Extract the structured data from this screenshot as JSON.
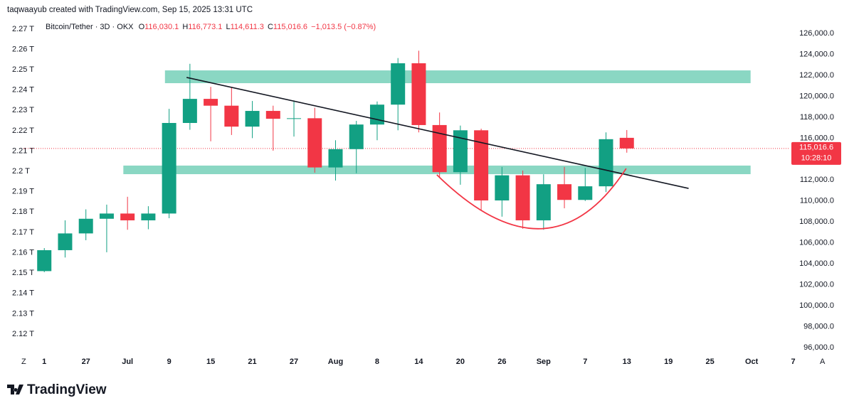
{
  "header": "taqwaayub created with TradingView.com, Sep 15, 2025 13:31 UTC",
  "logo": "TradingView",
  "chart_data": {
    "type": "candlestick",
    "symbol": "Bitcoin/Tether · 3D · OKX",
    "ohlc": [
      {
        "key": "O",
        "value": 116030.1,
        "label": "116,030.1"
      },
      {
        "key": "H",
        "value": 116773.1,
        "label": "116,773.1"
      },
      {
        "key": "L",
        "value": 114611.3,
        "label": "114,611.3"
      },
      {
        "key": "C",
        "value": 115016.6,
        "label": "115,016.6"
      }
    ],
    "change": {
      "value": -1013.5,
      "label": "−1,013.5"
    },
    "change_pct": {
      "value": -0.87,
      "label": "(−0.87%)"
    },
    "up_color": "#12a083",
    "down_color": "#f23645",
    "open": [
      103300,
      105300,
      106900,
      108300,
      108800,
      108150,
      108800,
      117450,
      119750,
      119100,
      117100,
      118600,
      117850,
      117900,
      113200,
      114950,
      117300,
      119200,
      123150,
      117250,
      112750,
      116750,
      110050,
      112450,
      108150,
      111600,
      110100,
      111400,
      116030.1
    ],
    "high": [
      105500,
      108150,
      109200,
      109650,
      110400,
      109500,
      118800,
      123100,
      120900,
      120850,
      119550,
      119100,
      119600,
      118900,
      115800,
      117650,
      119500,
      123650,
      124350,
      118450,
      117200,
      116900,
      113250,
      112900,
      112550,
      113250,
      113150,
      116550,
      116773.1
    ],
    "low": [
      103200,
      104600,
      106250,
      105100,
      107250,
      107300,
      108350,
      116800,
      115700,
      116300,
      116000,
      114800,
      116150,
      112700,
      111950,
      112650,
      115800,
      116750,
      116550,
      112200,
      111550,
      109100,
      108500,
      107350,
      107250,
      109300,
      110000,
      110850,
      114611.3
    ],
    "close": [
      105300,
      106900,
      108300,
      108800,
      108150,
      108800,
      117450,
      119750,
      119100,
      117100,
      118600,
      117850,
      117900,
      113200,
      114950,
      117300,
      119200,
      123150,
      117250,
      112750,
      116750,
      110050,
      112450,
      108150,
      111600,
      110100,
      111400,
      115900,
      115016.6
    ],
    "xlim": [
      -1,
      35.5
    ],
    "xticks": [
      {
        "value": 0,
        "label": "1"
      },
      {
        "value": 2,
        "label": "27"
      },
      {
        "value": 4,
        "label": "Jul"
      },
      {
        "value": 6,
        "label": "9"
      },
      {
        "value": 8,
        "label": "15"
      },
      {
        "value": 10,
        "label": "21"
      },
      {
        "value": 12,
        "label": "27"
      },
      {
        "value": 14,
        "label": "Aug"
      },
      {
        "value": 16,
        "label": "8"
      },
      {
        "value": 18,
        "label": "14"
      },
      {
        "value": 20,
        "label": "20"
      },
      {
        "value": 22,
        "label": "26"
      },
      {
        "value": 24,
        "label": "Sep"
      },
      {
        "value": 26,
        "label": "7"
      },
      {
        "value": 28,
        "label": "13"
      },
      {
        "value": 30,
        "label": "19"
      },
      {
        "value": 32,
        "label": "25"
      },
      {
        "value": 34,
        "label": "Oct"
      },
      {
        "value": 36,
        "label": "7"
      }
    ],
    "axis_buttons": [
      "Z",
      "A"
    ],
    "ylim": [
      95250,
      127700
    ],
    "yticks": [
      {
        "value": 126000,
        "label": "126,000.0"
      },
      {
        "value": 124000,
        "label": "124,000.0"
      },
      {
        "value": 122000,
        "label": "122,000.0"
      },
      {
        "value": 120000,
        "label": "120,000.0"
      },
      {
        "value": 118000,
        "label": "118,000.0"
      },
      {
        "value": 116000,
        "label": "116,000.0"
      },
      {
        "value": 112000,
        "label": "112,000.0"
      },
      {
        "value": 110000,
        "label": "110,000.0"
      },
      {
        "value": 108000,
        "label": "108,000.0"
      },
      {
        "value": 106000,
        "label": "106,000.0"
      },
      {
        "value": 104000,
        "label": "104,000.0"
      },
      {
        "value": 102000,
        "label": "102,000.0"
      },
      {
        "value": 100000,
        "label": "100,000.0"
      },
      {
        "value": 98000,
        "label": "98,000.0"
      },
      {
        "value": 96000,
        "label": "96,000.0"
      }
    ],
    "y2lim": [
      2.1095,
      2.2766
    ],
    "y2ticks": [
      {
        "value": 2.27,
        "label": "2.27 T"
      },
      {
        "value": 2.26,
        "label": "2.26 T"
      },
      {
        "value": 2.25,
        "label": "2.25 T"
      },
      {
        "value": 2.24,
        "label": "2.24 T"
      },
      {
        "value": 2.23,
        "label": "2.23 T"
      },
      {
        "value": 2.22,
        "label": "2.22 T"
      },
      {
        "value": 2.21,
        "label": "2.21 T"
      },
      {
        "value": 2.2,
        "label": "2.2 T"
      },
      {
        "value": 2.19,
        "label": "2.19 T"
      },
      {
        "value": 2.18,
        "label": "2.18 T"
      },
      {
        "value": 2.17,
        "label": "2.17 T"
      },
      {
        "value": 2.16,
        "label": "2.16 T"
      },
      {
        "value": 2.15,
        "label": "2.15 T"
      },
      {
        "value": 2.14,
        "label": "2.14 T"
      },
      {
        "value": 2.13,
        "label": "2.13 T"
      },
      {
        "value": 2.12,
        "label": "2.12 T"
      }
    ],
    "zone_color": "#7dd3bd",
    "zones": [
      {
        "x": [
          5.8,
          33.95
        ],
        "y": [
          121250,
          122470
        ]
      },
      {
        "x": [
          3.8,
          33.95
        ],
        "y": [
          112560,
          113380
        ]
      }
    ],
    "trendline": {
      "x": [
        6.84,
        30.97
      ],
      "y": [
        121800,
        111200
      ],
      "color": "#131722"
    },
    "curve": {
      "x": [
        18.87,
        23.86,
        27.97
      ],
      "y": [
        112500,
        107350,
        113100
      ],
      "color": "#f23645"
    },
    "last_price": {
      "value": 115016.6,
      "label": "115,016.6",
      "countdown": "10:28:10"
    }
  }
}
